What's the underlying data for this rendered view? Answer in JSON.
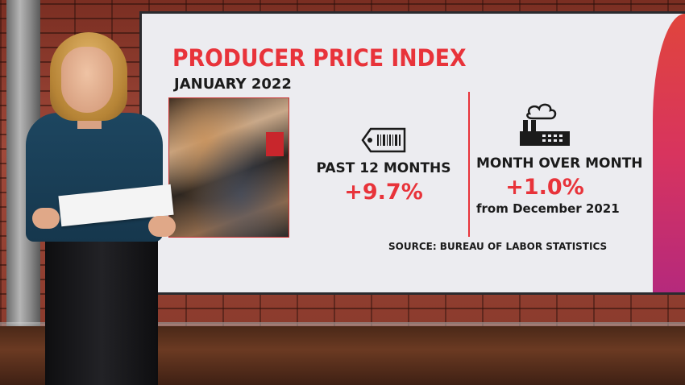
{
  "graphic": {
    "title": "PRODUCER PRICE INDEX",
    "subtitle": "JANUARY 2022",
    "past12": {
      "label": "PAST 12 MONTHS",
      "value": "+9.7%"
    },
    "mom": {
      "label": "MONTH OVER MONTH",
      "value": "+1.0%",
      "note": "from December 2021"
    },
    "source": "SOURCE: BUREAU OF LABOR STATISTICS"
  },
  "icons": {
    "price_tag": "price-tag-icon",
    "factory": "factory-icon"
  },
  "colors": {
    "accent_red": "#e8333a",
    "panel": "#ececf0",
    "text": "#1b1b1b"
  }
}
